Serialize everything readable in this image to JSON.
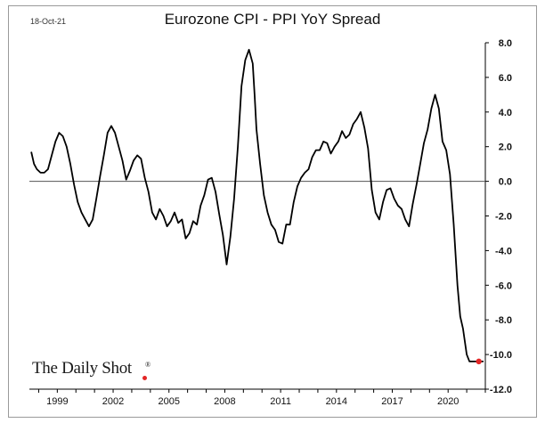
{
  "header": {
    "date": "18-Oct-21",
    "title": "Eurozone CPI - PPI YoY Spread"
  },
  "branding": {
    "name": "The Daily Shot",
    "mark": "®"
  },
  "colors": {
    "line": "#000000",
    "zero_line": "#555555",
    "last_point": "#e32626",
    "axis": "#000000"
  },
  "chart_data": {
    "type": "line",
    "title": "Eurozone CPI - PPI YoY Spread",
    "xlabel": "",
    "ylabel": "",
    "ylim": [
      -12,
      8
    ],
    "xlim": [
      1997.5,
      2022.0
    ],
    "yticks": [
      "8.0",
      "6.0",
      "4.0",
      "2.0",
      "0.0",
      "-2.0",
      "-4.0",
      "-6.0",
      "-8.0",
      "-10.0",
      "-12.0"
    ],
    "ytick_values": [
      8,
      6,
      4,
      2,
      0,
      -2,
      -4,
      -6,
      -8,
      -10,
      -12
    ],
    "xticks": [
      "1999",
      "2002",
      "2005",
      "2008",
      "2011",
      "2014",
      "2017",
      "2020"
    ],
    "xtick_values": [
      1999,
      2002,
      2005,
      2008,
      2011,
      2014,
      2017,
      2020
    ],
    "grid": false,
    "legend": "none",
    "series": [
      {
        "x": [
          1997.6,
          1997.75,
          1997.9,
          1998.1,
          1998.3,
          1998.5,
          1998.7,
          1998.9,
          1999.1,
          1999.3,
          1999.5,
          1999.7,
          1999.9,
          2000.1,
          2000.3,
          2000.5,
          2000.7,
          2000.9,
          2001.1,
          2001.3,
          2001.5,
          2001.7,
          2001.9,
          2002.1,
          2002.3,
          2002.5,
          2002.7,
          2002.9,
          2003.1,
          2003.3,
          2003.5,
          2003.7,
          2003.9,
          2004.1,
          2004.3,
          2004.5,
          2004.7,
          2004.9,
          2005.1,
          2005.3,
          2005.5,
          2005.7,
          2005.9,
          2006.1,
          2006.3,
          2006.5,
          2006.7,
          2006.9,
          2007.1,
          2007.3,
          2007.5,
          2007.7,
          2007.9,
          2008.1,
          2008.3,
          2008.5,
          2008.7,
          2008.9,
          2009.1,
          2009.3,
          2009.5,
          2009.6,
          2009.7,
          2009.9,
          2010.1,
          2010.3,
          2010.5,
          2010.7,
          2010.9,
          2011.1,
          2011.3,
          2011.5,
          2011.7,
          2011.9,
          2012.1,
          2012.3,
          2012.5,
          2012.7,
          2012.9,
          2013.1,
          2013.3,
          2013.5,
          2013.7,
          2013.9,
          2014.1,
          2014.3,
          2014.5,
          2014.7,
          2014.9,
          2015.1,
          2015.3,
          2015.5,
          2015.7,
          2015.9,
          2016.1,
          2016.3,
          2016.5,
          2016.7,
          2016.9,
          2017.1,
          2017.3,
          2017.5,
          2017.7,
          2017.9,
          2018.1,
          2018.3,
          2018.5,
          2018.7,
          2018.9,
          2019.1,
          2019.3,
          2019.5,
          2019.7,
          2019.9,
          2020.1,
          2020.3,
          2020.5,
          2020.65,
          2020.8,
          2021.0,
          2021.15,
          2021.3,
          2021.45,
          2021.6,
          2021.75,
          2021.9
        ],
        "y": [
          1.7,
          1.0,
          0.7,
          0.5,
          0.5,
          0.7,
          1.5,
          2.3,
          2.8,
          2.6,
          2.0,
          1.0,
          -0.2,
          -1.2,
          -1.8,
          -2.2,
          -2.6,
          -2.2,
          -1.0,
          0.3,
          1.5,
          2.8,
          3.2,
          2.8,
          2.0,
          1.2,
          0.1,
          0.6,
          1.2,
          1.5,
          1.3,
          0.2,
          -0.6,
          -1.8,
          -2.2,
          -1.6,
          -2.0,
          -2.6,
          -2.3,
          -1.8,
          -2.4,
          -2.2,
          -3.3,
          -3.0,
          -2.3,
          -2.5,
          -1.4,
          -0.8,
          0.1,
          0.2,
          -0.6,
          -1.9,
          -3.1,
          -4.8,
          -3.2,
          -1.0,
          2.0,
          5.5,
          7.0,
          7.6,
          6.8,
          5.0,
          3.0,
          1.0,
          -0.8,
          -1.8,
          -2.5,
          -2.8,
          -3.5,
          -3.6,
          -2.5,
          -2.5,
          -1.2,
          -0.3,
          0.2,
          0.5,
          0.7,
          1.4,
          1.8,
          1.8,
          2.3,
          2.2,
          1.6,
          2.0,
          2.3,
          2.9,
          2.5,
          2.7,
          3.3,
          3.6,
          4.0,
          3.1,
          1.9,
          -0.5,
          -1.8,
          -2.2,
          -1.2,
          -0.5,
          -0.4,
          -1.0,
          -1.4,
          -1.6,
          -2.2,
          -2.6,
          -1.3,
          -0.2,
          1.0,
          2.2,
          3.0,
          4.2,
          5.0,
          4.2,
          2.3,
          1.8,
          0.4,
          -2.5,
          -6.0,
          -7.8,
          -8.5,
          -10.0,
          -10.4,
          -10.4,
          -10.4,
          -10.4,
          -10.4,
          -10.4
        ]
      }
    ],
    "last_point": {
      "x": 2021.65,
      "y": -10.4
    }
  }
}
